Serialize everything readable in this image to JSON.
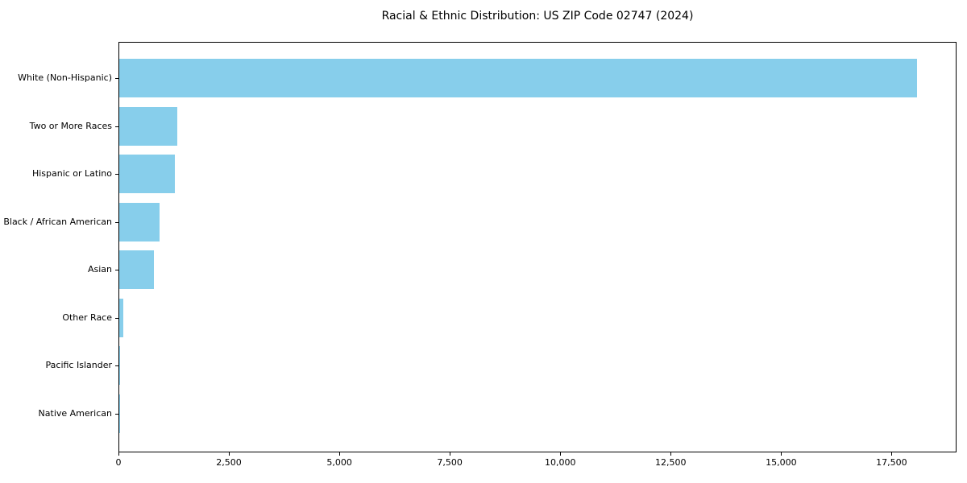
{
  "chart_data": {
    "type": "bar",
    "orientation": "horizontal",
    "title": "Racial & Ethnic Distribution: US ZIP Code 02747 (2024)",
    "categories": [
      "White (Non-Hispanic)",
      "Two or More Races",
      "Hispanic or Latino",
      "Black / African American",
      "Asian",
      "Other Race",
      "Pacific Islander",
      "Native American"
    ],
    "values": [
      18060,
      1310,
      1250,
      915,
      780,
      90,
      15,
      4
    ],
    "xlabel": "",
    "ylabel": "",
    "xlim": [
      0,
      18970
    ],
    "x_ticks": [
      0,
      2500,
      5000,
      7500,
      10000,
      12500,
      15000,
      17500
    ],
    "x_tick_labels": [
      "0",
      "2,500",
      "5,000",
      "7,500",
      "10,000",
      "12,500",
      "15,000",
      "17,500"
    ],
    "grid": false,
    "legend": false,
    "bar_color": "#87CEEB",
    "spine_color": "#000000",
    "background_color": "#FFFFFF"
  }
}
